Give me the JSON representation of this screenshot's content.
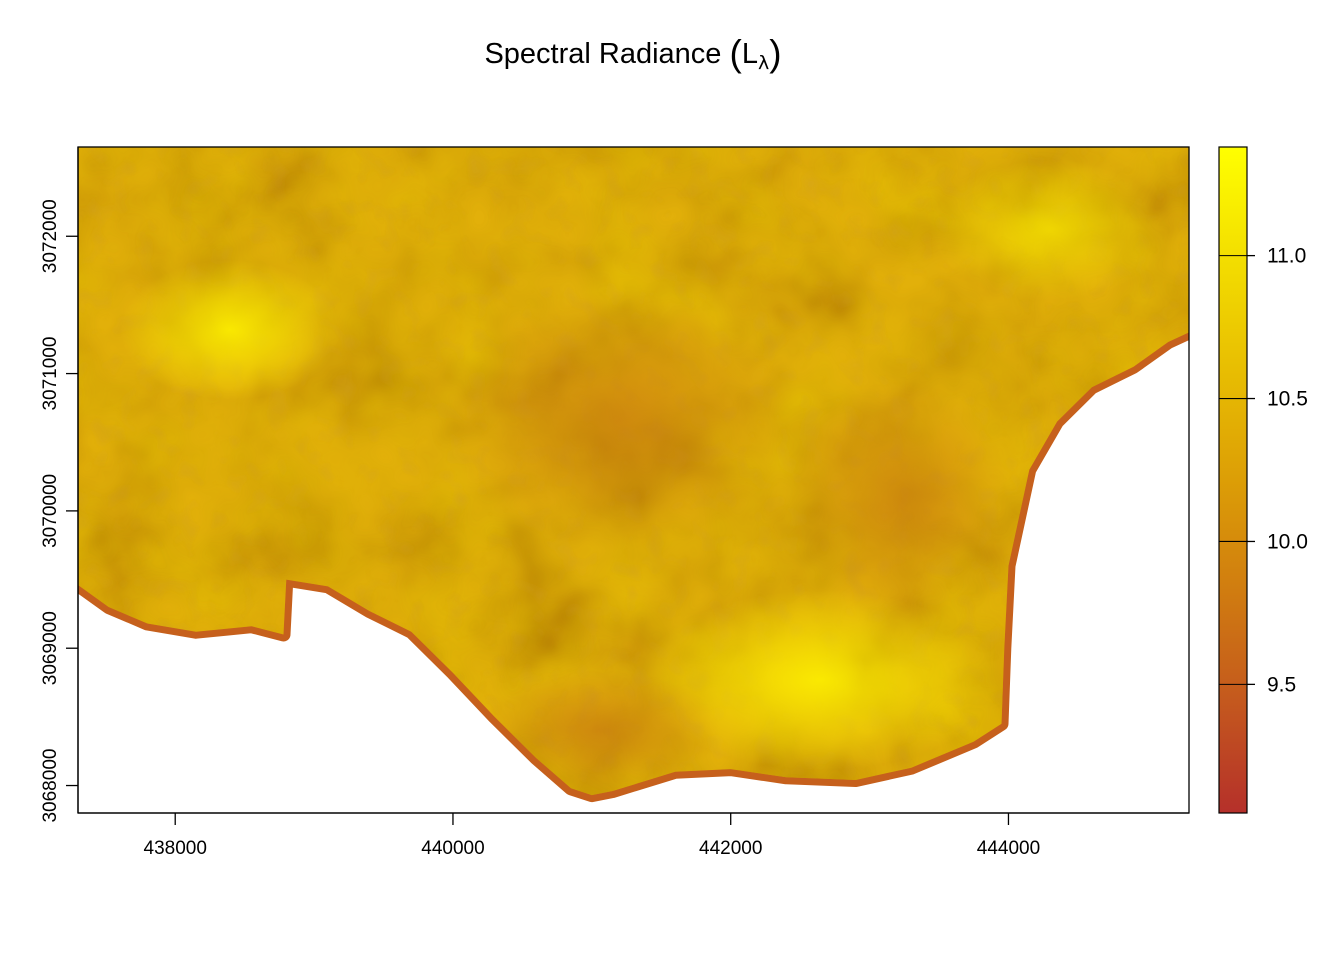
{
  "title": {
    "main": "Spectral Radiance",
    "open": "(",
    "symbol": "L",
    "subscript": "λ",
    "close": ")"
  },
  "map": {
    "x_range": [
      437300,
      445300
    ],
    "y_range": [
      3067800,
      3072650
    ],
    "x_ticks": [
      {
        "value": 438000,
        "label": "438000"
      },
      {
        "value": 440000,
        "label": "440000"
      },
      {
        "value": 442000,
        "label": "442000"
      },
      {
        "value": 444000,
        "label": "444000"
      }
    ],
    "y_ticks": [
      {
        "value": 3068000,
        "label": "3068000"
      },
      {
        "value": 3069000,
        "label": "3069000"
      },
      {
        "value": 3070000,
        "label": "3070000"
      },
      {
        "value": 3071000,
        "label": "3071000"
      },
      {
        "value": 3072000,
        "label": "3072000"
      }
    ],
    "coastline": [
      [
        437300,
        3069460
      ],
      [
        437520,
        3069300
      ],
      [
        437800,
        3069180
      ],
      [
        438150,
        3069120
      ],
      [
        438550,
        3069160
      ],
      [
        438780,
        3069100
      ],
      [
        438800,
        3069500
      ],
      [
        439100,
        3069450
      ],
      [
        439400,
        3069270
      ],
      [
        439700,
        3069120
      ],
      [
        440000,
        3068820
      ],
      [
        440300,
        3068500
      ],
      [
        440600,
        3068200
      ],
      [
        440850,
        3067980
      ],
      [
        441000,
        3067930
      ],
      [
        441150,
        3067960
      ],
      [
        441600,
        3068100
      ],
      [
        442000,
        3068120
      ],
      [
        442400,
        3068060
      ],
      [
        442900,
        3068040
      ],
      [
        443300,
        3068130
      ],
      [
        443750,
        3068320
      ],
      [
        443950,
        3068450
      ],
      [
        443970,
        3069000
      ],
      [
        444000,
        3069600
      ],
      [
        444150,
        3070300
      ],
      [
        444350,
        3070650
      ],
      [
        444600,
        3070900
      ],
      [
        444900,
        3071050
      ],
      [
        445150,
        3071230
      ],
      [
        445300,
        3071300
      ]
    ],
    "land_color": "#e2b00a",
    "edge_color": "#c6601c"
  },
  "legend": {
    "range": [
      9.05,
      11.38
    ],
    "ticks": [
      {
        "value": 9.5,
        "label": "9.5"
      },
      {
        "value": 10.0,
        "label": "10.0"
      },
      {
        "value": 10.5,
        "label": "10.5"
      },
      {
        "value": 11.0,
        "label": "11.0"
      }
    ],
    "colors": [
      "#b5302a",
      "#c4581e",
      "#d07c10",
      "#dc9e06",
      "#e8be02",
      "#f3de00",
      "#ffff00"
    ]
  }
}
